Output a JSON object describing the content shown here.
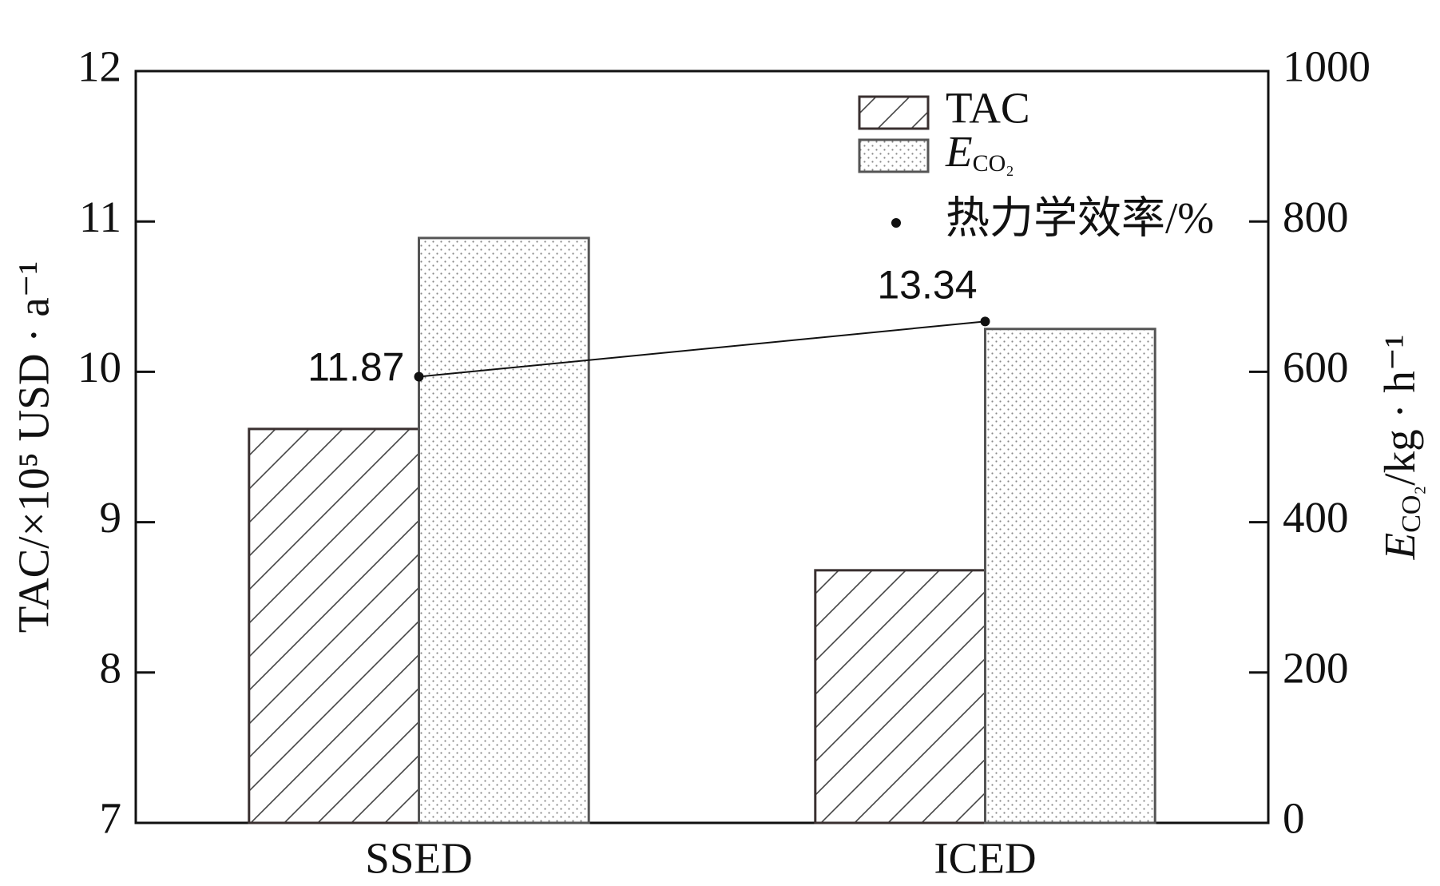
{
  "chart_data": {
    "type": "bar",
    "categories": [
      "SSED",
      "ICED"
    ],
    "series": [
      {
        "name": "TAC",
        "color": "#3a3030",
        "pattern": "hatch",
        "axis": "y",
        "values": [
          9.62,
          8.68
        ]
      },
      {
        "name": "ECO₂",
        "color": "#555555",
        "pattern": "dots",
        "axis": "y2",
        "values": [
          778,
          657
        ]
      },
      {
        "name": "热力学效率/%",
        "color": "#111111",
        "type": "line",
        "axis": "y3",
        "values": [
          11.87,
          13.34
        ]
      }
    ],
    "ylabel": "TAC/×10⁵ USD · a⁻¹",
    "y2label": "ECO₂/kg · h⁻¹",
    "ylim": [
      7,
      12
    ],
    "yticks": [
      7,
      8,
      9,
      10,
      11,
      12
    ],
    "y2lim": [
      0,
      1000
    ],
    "y2ticks": [
      0,
      200,
      400,
      600,
      800,
      1000
    ],
    "y3lim": [
      0,
      20
    ],
    "grid": false,
    "legend": "upper right"
  }
}
